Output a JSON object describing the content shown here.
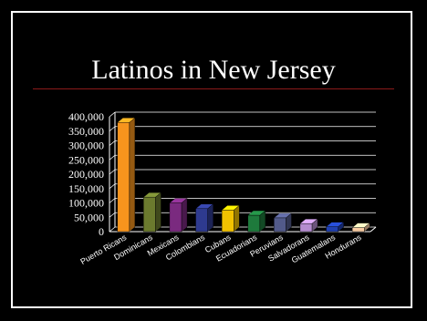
{
  "slide": {
    "title": "Latinos in New Jersey",
    "background": "#000000",
    "frame_color": "#ffffff",
    "rule_color": "#8b1a1a"
  },
  "chart_data": {
    "type": "bar",
    "title": "",
    "xlabel": "",
    "ylabel": "",
    "ylim": [
      0,
      400000
    ],
    "yticks": [
      0,
      50000,
      100000,
      150000,
      200000,
      250000,
      300000,
      350000,
      400000
    ],
    "ytick_labels": [
      "0",
      "50,000",
      "100,000",
      "150,000",
      "200,000",
      "250,000",
      "300,000",
      "350,000",
      "400,000"
    ],
    "grid": true,
    "categories": [
      "Puerto Ricans",
      "Dominicans",
      "Mexicans",
      "Colombians",
      "Cubans",
      "Ecuadorians",
      "Peruvians",
      "Salvadorans",
      "Guatemalans",
      "Hondurans"
    ],
    "values": [
      380000,
      120000,
      100000,
      80000,
      75000,
      57000,
      48000,
      28000,
      17000,
      14000
    ],
    "colors": [
      "#f7941d",
      "#6b7a2e",
      "#7a2a7f",
      "#2e3a8f",
      "#f2c200",
      "#1e7a3c",
      "#525a8a",
      "#b58cd0",
      "#2040b0",
      "#f6c9a0"
    ]
  }
}
